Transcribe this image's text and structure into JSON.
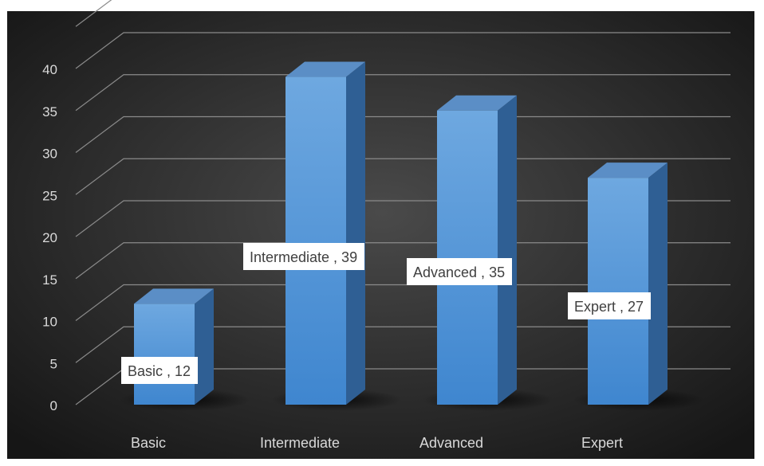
{
  "chart_data": {
    "type": "bar",
    "categories": [
      "Basic",
      "Intermediate",
      "Advanced",
      "Expert"
    ],
    "values": [
      12,
      39,
      35,
      27
    ],
    "data_labels": [
      "Basic , 12",
      "Intermediate , 39",
      "Advanced , 35",
      "Expert , 27"
    ],
    "y_ticks": [
      "0",
      "5",
      "10",
      "15",
      "20",
      "25",
      "30",
      "35",
      "40"
    ],
    "ylim": [
      0,
      45
    ],
    "grid": true,
    "legend": "none",
    "style": "3d-column",
    "colors": {
      "background_center": "#4a4a4a",
      "background_edge": "#161616",
      "bar_front_top": "#6ea8e0",
      "bar_front_bottom": "#3f86cf",
      "bar_side": "#2f5f94",
      "bar_top": "#5b8ec6",
      "gridline": "#8a8a8a",
      "tick_text": "#d9d9d9",
      "label_box": "#ffffff",
      "label_text": "#404040"
    }
  }
}
